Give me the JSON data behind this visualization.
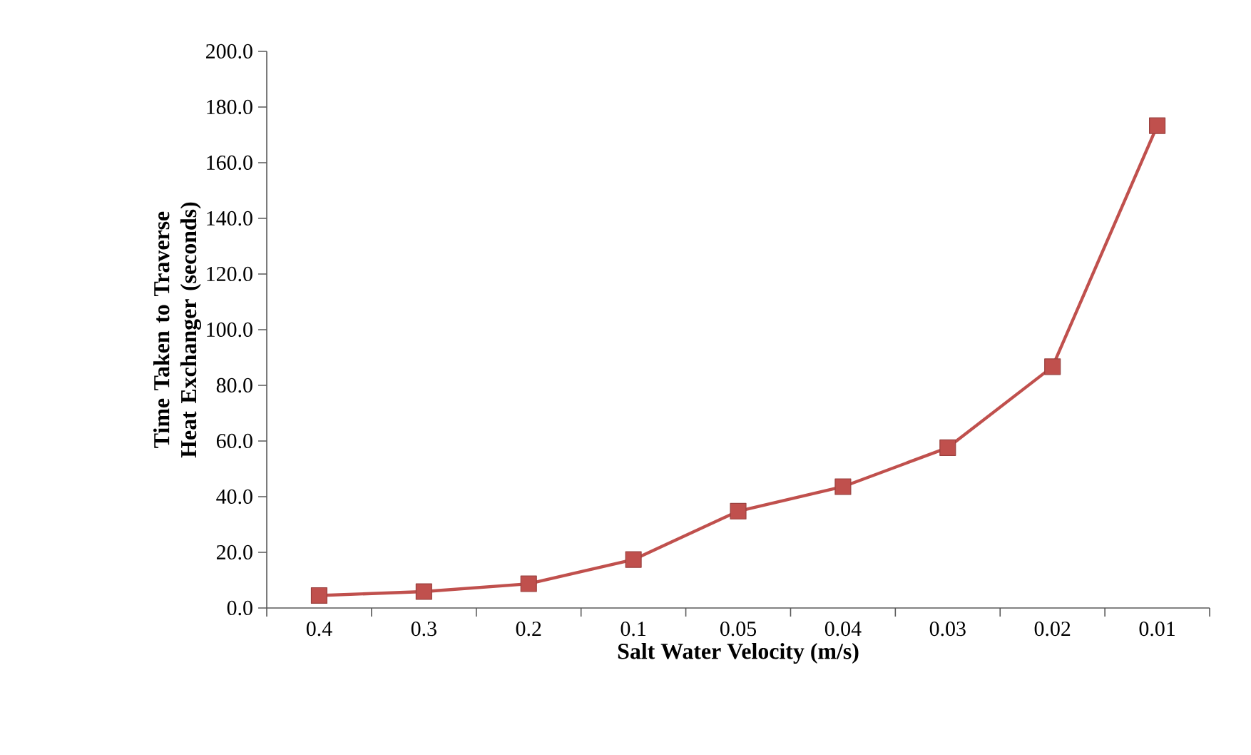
{
  "chart_data": {
    "type": "line",
    "xlabel": "Salt Water Velocity (m/s)",
    "ylabel": "Time Taken to Traverse Heat Exchanger (seconds)",
    "categories": [
      "0.4",
      "0.3",
      "0.2",
      "0.1",
      "0.05",
      "0.04",
      "0.03",
      "0.02",
      "0.01"
    ],
    "series": [
      {
        "color": "#c0504d",
        "values": [
          4.5,
          5.9,
          8.7,
          17.4,
          34.8,
          43.6,
          57.6,
          86.7,
          173.3
        ]
      }
    ],
    "ylim": [
      0,
      200
    ],
    "yticks": [
      {
        "value": 0,
        "label": "0.0"
      },
      {
        "value": 20,
        "label": "20.0"
      },
      {
        "value": 40,
        "label": "40.0"
      },
      {
        "value": 60,
        "label": "60.0"
      },
      {
        "value": 80,
        "label": "80.0"
      },
      {
        "value": 100,
        "label": "100.0"
      },
      {
        "value": 120,
        "label": "120.0"
      },
      {
        "value": 140,
        "label": "140.0"
      },
      {
        "value": 160,
        "label": "160.0"
      },
      {
        "value": 180,
        "label": "180.0"
      },
      {
        "value": 200,
        "label": "200.0"
      }
    ],
    "grid": false,
    "legend": false,
    "marker": "square",
    "line_style": "solid"
  }
}
